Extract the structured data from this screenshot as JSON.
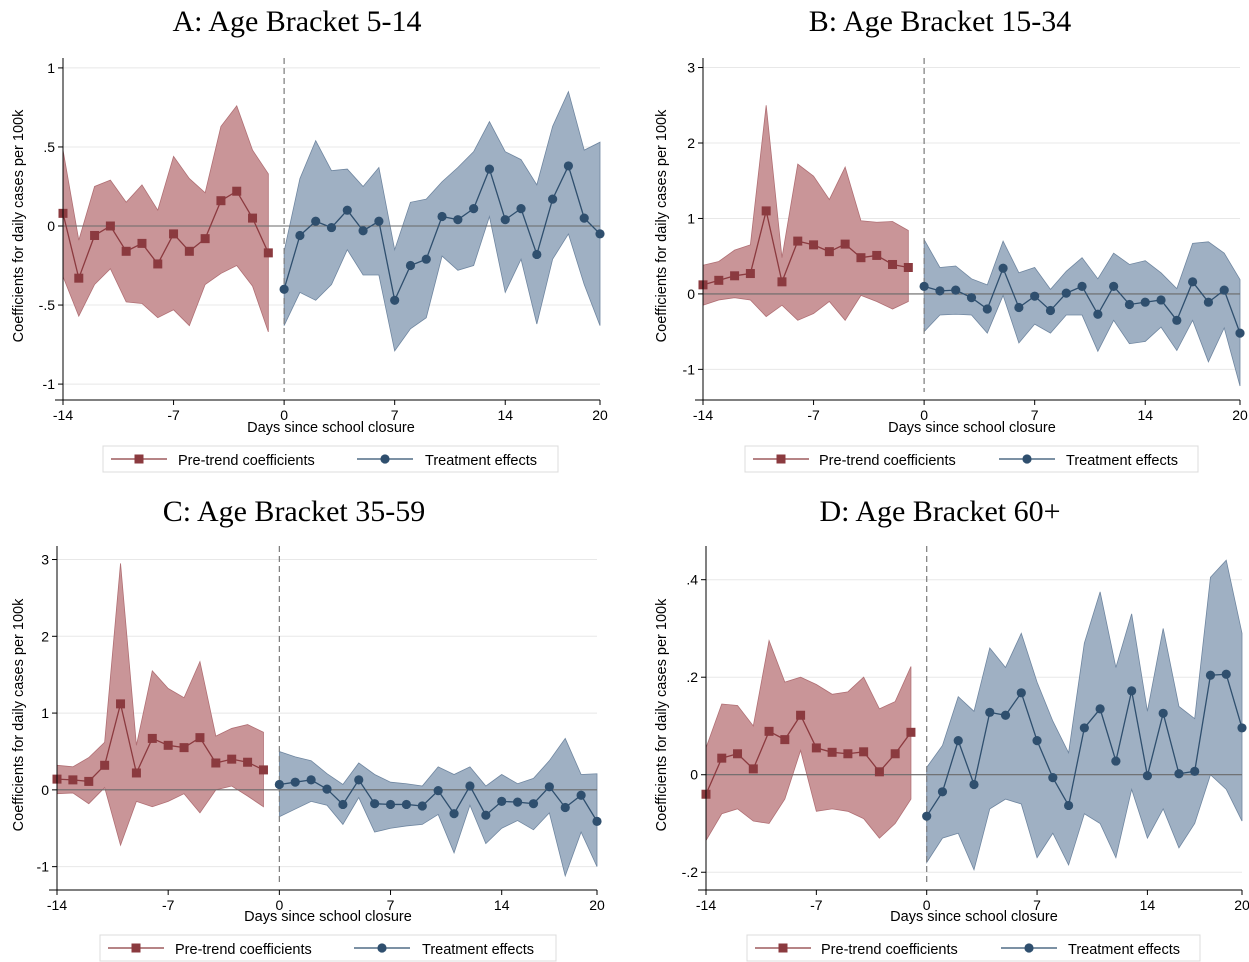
{
  "colors": {
    "pre": "#8b3a3f",
    "pre_band": "#c99598",
    "treat": "#2f4f6e",
    "treat_band": "#9fb0c3",
    "grid": "#e8e8e8"
  },
  "legend": {
    "pre": "Pre-trend coefficients",
    "treat": "Treatment effects"
  },
  "chart_data": [
    {
      "type": "line",
      "title": "A: Age Bracket 5-14",
      "xlabel": "Days since school closure",
      "ylabel": "Coefficients for daily cases per 100k",
      "xlim": [
        -14,
        20
      ],
      "ylim": [
        -1.05,
        1.05
      ],
      "xticks": [
        -14,
        -7,
        0,
        7,
        14,
        20
      ],
      "yticks": [
        -1,
        -0.5,
        0,
        0.5,
        1
      ],
      "ytick_labels": [
        "-1",
        "-.5",
        "0",
        ".5",
        "1"
      ],
      "grid": true,
      "legend_position": "bottom",
      "series": [
        {
          "name": "Pre-trend coefficients",
          "x": [
            -14,
            -13,
            -12,
            -11,
            -10,
            -9,
            -8,
            -7,
            -6,
            -5,
            -4,
            -3,
            -2,
            -1
          ],
          "y": [
            0.08,
            -0.33,
            -0.06,
            0.0,
            -0.16,
            -0.11,
            -0.24,
            -0.05,
            -0.16,
            -0.08,
            0.16,
            0.22,
            0.05,
            -0.17
          ],
          "lower": [
            -0.32,
            -0.57,
            -0.37,
            -0.27,
            -0.48,
            -0.49,
            -0.58,
            -0.53,
            -0.63,
            -0.37,
            -0.3,
            -0.25,
            -0.38,
            -0.67
          ],
          "upper": [
            0.48,
            -0.09,
            0.25,
            0.29,
            0.15,
            0.26,
            0.1,
            0.44,
            0.3,
            0.21,
            0.63,
            0.76,
            0.48,
            0.33
          ]
        },
        {
          "name": "Treatment effects",
          "x": [
            0,
            1,
            2,
            3,
            4,
            5,
            6,
            7,
            8,
            9,
            10,
            11,
            12,
            13,
            14,
            15,
            16,
            17,
            18,
            19,
            20
          ],
          "y": [
            -0.4,
            -0.06,
            0.03,
            -0.01,
            0.1,
            -0.03,
            0.03,
            -0.47,
            -0.25,
            -0.21,
            0.06,
            0.04,
            0.11,
            0.36,
            0.04,
            0.11,
            -0.18,
            0.17,
            0.38,
            0.05,
            -0.05
          ],
          "lower": [
            -0.63,
            -0.42,
            -0.47,
            -0.37,
            -0.15,
            -0.31,
            -0.31,
            -0.79,
            -0.65,
            -0.58,
            -0.19,
            -0.28,
            -0.25,
            0.06,
            -0.42,
            -0.21,
            -0.62,
            -0.21,
            -0.05,
            -0.37,
            -0.63
          ],
          "upper": [
            -0.16,
            0.3,
            0.54,
            0.35,
            0.36,
            0.25,
            0.37,
            -0.15,
            0.15,
            0.17,
            0.28,
            0.37,
            0.47,
            0.66,
            0.47,
            0.42,
            0.26,
            0.63,
            0.85,
            0.48,
            0.53
          ]
        }
      ]
    },
    {
      "type": "line",
      "title": "B: Age Bracket 15-34",
      "xlabel": "Days since school closure",
      "ylabel": "Coefficients for daily cases per 100k",
      "xlim": [
        -14,
        20
      ],
      "ylim": [
        -1.3,
        3.1
      ],
      "xticks": [
        -14,
        -7,
        0,
        7,
        14,
        20
      ],
      "yticks": [
        -1,
        0,
        1,
        2,
        3
      ],
      "ytick_labels": [
        "-1",
        "0",
        "1",
        "2",
        "3"
      ],
      "grid": true,
      "legend_position": "bottom",
      "series": [
        {
          "name": "Pre-trend coefficients",
          "x": [
            -14,
            -13,
            -12,
            -11,
            -10,
            -9,
            -8,
            -7,
            -6,
            -5,
            -4,
            -3,
            -2,
            -1
          ],
          "y": [
            0.12,
            0.18,
            0.24,
            0.27,
            1.1,
            0.16,
            0.7,
            0.65,
            0.56,
            0.66,
            0.48,
            0.51,
            0.39,
            0.35
          ],
          "lower": [
            -0.15,
            -0.08,
            -0.05,
            -0.08,
            -0.3,
            -0.15,
            -0.35,
            -0.26,
            -0.1,
            -0.35,
            -0.02,
            -0.1,
            -0.2,
            -0.1
          ],
          "upper": [
            0.38,
            0.43,
            0.58,
            0.65,
            2.5,
            0.48,
            1.72,
            1.56,
            1.25,
            1.68,
            0.97,
            0.95,
            0.96,
            0.84
          ]
        },
        {
          "name": "Treatment effects",
          "x": [
            0,
            1,
            2,
            3,
            4,
            5,
            6,
            7,
            8,
            9,
            10,
            11,
            12,
            13,
            14,
            15,
            16,
            17,
            18,
            19,
            20
          ],
          "y": [
            0.1,
            0.04,
            0.05,
            -0.05,
            -0.2,
            0.34,
            -0.18,
            -0.03,
            -0.22,
            0.01,
            0.1,
            -0.27,
            0.1,
            -0.14,
            -0.11,
            -0.08,
            -0.35,
            0.16,
            -0.11,
            0.05,
            -0.52
          ],
          "lower": [
            -0.5,
            -0.28,
            -0.27,
            -0.28,
            -0.52,
            -0.02,
            -0.65,
            -0.4,
            -0.52,
            -0.28,
            -0.28,
            -0.76,
            -0.35,
            -0.66,
            -0.63,
            -0.44,
            -0.75,
            -0.35,
            -0.9,
            -0.45,
            -1.22
          ],
          "upper": [
            0.72,
            0.35,
            0.37,
            0.2,
            0.12,
            0.7,
            0.28,
            0.35,
            0.06,
            0.3,
            0.48,
            0.2,
            0.54,
            0.39,
            0.44,
            0.28,
            0.07,
            0.67,
            0.69,
            0.54,
            0.19
          ]
        }
      ]
    },
    {
      "type": "line",
      "title": "C: Age Bracket 35-59",
      "xlabel": "Days since school closure",
      "ylabel": "Coefficients for daily cases per 100k",
      "xlim": [
        -14,
        20
      ],
      "ylim": [
        -1.2,
        3.15
      ],
      "xticks": [
        -14,
        -7,
        0,
        7,
        14,
        20
      ],
      "yticks": [
        -1,
        0,
        1,
        2,
        3
      ],
      "ytick_labels": [
        "-1",
        "0",
        "1",
        "2",
        "3"
      ],
      "grid": true,
      "legend_position": "bottom",
      "series": [
        {
          "name": "Pre-trend coefficients",
          "x": [
            -14,
            -13,
            -12,
            -11,
            -10,
            -9,
            -8,
            -7,
            -6,
            -5,
            -4,
            -3,
            -2,
            -1
          ],
          "y": [
            0.14,
            0.13,
            0.11,
            0.32,
            1.12,
            0.22,
            0.67,
            0.58,
            0.55,
            0.68,
            0.35,
            0.4,
            0.36,
            0.26
          ],
          "lower": [
            -0.05,
            -0.04,
            -0.18,
            0.03,
            -0.72,
            -0.15,
            -0.22,
            -0.15,
            -0.05,
            -0.3,
            0.0,
            0.05,
            -0.08,
            -0.22
          ],
          "upper": [
            0.32,
            0.3,
            0.42,
            0.62,
            2.95,
            0.58,
            1.55,
            1.32,
            1.2,
            1.67,
            0.7,
            0.8,
            0.85,
            0.75
          ]
        },
        {
          "name": "Treatment effects",
          "x": [
            0,
            1,
            2,
            3,
            4,
            5,
            6,
            7,
            8,
            9,
            10,
            11,
            12,
            13,
            14,
            15,
            16,
            17,
            18,
            19,
            20
          ],
          "y": [
            0.07,
            0.1,
            0.13,
            0.01,
            -0.19,
            0.13,
            -0.18,
            -0.19,
            -0.19,
            -0.21,
            -0.01,
            -0.31,
            0.05,
            -0.33,
            -0.15,
            -0.16,
            -0.18,
            0.04,
            -0.23,
            -0.07,
            -0.41
          ],
          "lower": [
            -0.35,
            -0.25,
            -0.15,
            -0.2,
            -0.45,
            -0.1,
            -0.55,
            -0.5,
            -0.47,
            -0.45,
            -0.32,
            -0.82,
            -0.2,
            -0.7,
            -0.5,
            -0.4,
            -0.52,
            -0.3,
            -1.12,
            -0.55,
            -1.0
          ],
          "upper": [
            0.5,
            0.43,
            0.38,
            0.21,
            0.07,
            0.35,
            0.2,
            0.1,
            0.08,
            0.05,
            0.3,
            0.2,
            0.3,
            0.05,
            0.2,
            0.08,
            0.15,
            0.38,
            0.67,
            0.2,
            0.21
          ]
        }
      ]
    },
    {
      "type": "line",
      "title": "D: Age Bracket 60+",
      "xlabel": "Days since school closure",
      "ylabel": "Coefficients for daily cases per 100k",
      "xlim": [
        -14,
        20
      ],
      "ylim": [
        -0.22,
        0.465
      ],
      "xticks": [
        -14,
        -7,
        0,
        7,
        14,
        20
      ],
      "yticks": [
        -0.2,
        0,
        0.2,
        0.4
      ],
      "ytick_labels": [
        "-.2",
        "0",
        ".2",
        ".4"
      ],
      "grid": true,
      "legend_position": "bottom",
      "series": [
        {
          "name": "Pre-trend coefficients",
          "x": [
            -14,
            -13,
            -12,
            -11,
            -10,
            -9,
            -8,
            -7,
            -6,
            -5,
            -4,
            -3,
            -2,
            -1
          ],
          "y": [
            -0.04,
            0.034,
            0.043,
            0.012,
            0.089,
            0.072,
            0.122,
            0.055,
            0.046,
            0.043,
            0.047,
            0.006,
            0.043,
            0.087
          ],
          "lower": [
            -0.135,
            -0.08,
            -0.07,
            -0.095,
            -0.1,
            -0.05,
            0.05,
            -0.075,
            -0.07,
            -0.075,
            -0.09,
            -0.13,
            -0.1,
            -0.05
          ],
          "upper": [
            0.055,
            0.145,
            0.142,
            0.1,
            0.275,
            0.19,
            0.2,
            0.185,
            0.165,
            0.17,
            0.2,
            0.135,
            0.15,
            0.222
          ]
        },
        {
          "name": "Treatment effects",
          "x": [
            0,
            1,
            2,
            3,
            4,
            5,
            6,
            7,
            8,
            9,
            10,
            11,
            12,
            13,
            14,
            15,
            16,
            17,
            18,
            19,
            20
          ],
          "y": [
            -0.085,
            -0.035,
            0.07,
            -0.02,
            0.128,
            0.122,
            0.168,
            0.07,
            -0.006,
            -0.063,
            0.096,
            0.135,
            0.028,
            0.172,
            -0.002,
            0.126,
            0.002,
            0.007,
            0.204,
            0.206,
            0.096
          ],
          "lower": [
            -0.18,
            -0.13,
            -0.12,
            -0.195,
            -0.07,
            -0.05,
            -0.06,
            -0.17,
            -0.12,
            -0.185,
            -0.08,
            -0.1,
            -0.17,
            -0.03,
            -0.13,
            -0.07,
            -0.15,
            -0.1,
            0.0,
            -0.03,
            -0.095
          ],
          "upper": [
            0.015,
            0.06,
            0.16,
            0.13,
            0.26,
            0.22,
            0.29,
            0.19,
            0.11,
            0.045,
            0.27,
            0.375,
            0.22,
            0.33,
            0.13,
            0.3,
            0.14,
            0.115,
            0.405,
            0.44,
            0.29
          ]
        }
      ]
    }
  ]
}
